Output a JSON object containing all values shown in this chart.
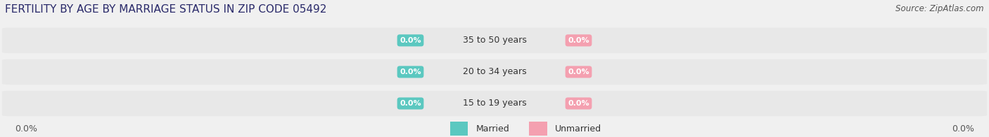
{
  "title": "FERTILITY BY AGE BY MARRIAGE STATUS IN ZIP CODE 05492",
  "source": "Source: ZipAtlas.com",
  "categories": [
    "15 to 19 years",
    "20 to 34 years",
    "35 to 50 years"
  ],
  "married_values": [
    "0.0%",
    "0.0%",
    "0.0%"
  ],
  "unmarried_values": [
    "0.0%",
    "0.0%",
    "0.0%"
  ],
  "married_color": "#5BC8C0",
  "unmarried_color": "#F4A0B0",
  "bar_bg_color": "#E8E8E8",
  "bar_bg_color2": "#DCDCDC",
  "title_fontsize": 11,
  "source_fontsize": 8.5,
  "label_fontsize": 9,
  "category_fontsize": 9,
  "value_label_fontsize": 8,
  "left_axis_label": "0.0%",
  "right_axis_label": "0.0%",
  "legend_married": "Married",
  "legend_unmarried": "Unmarried",
  "background_color": "#f0f0f0"
}
